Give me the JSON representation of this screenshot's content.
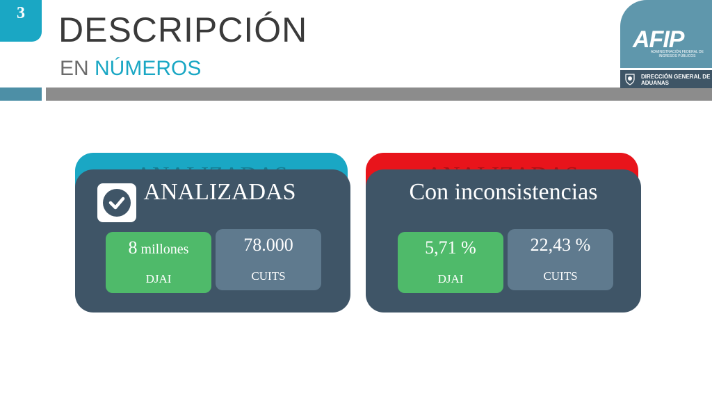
{
  "slide_number": "3",
  "title": "DESCRIPCIÓN",
  "subtitle_prefix": "EN ",
  "subtitle_accent": "NÚMEROS",
  "logo": {
    "brand": "AFIP",
    "brand_sub": "ADMINISTRACIÓN FEDERAL DE INGRESOS PÚBLICOS",
    "dept_line1": "DIRECCIÓN GENERAL DE",
    "dept_line2": "ADUANAS"
  },
  "cards": [
    {
      "ghost_title": "ANALIZADAS",
      "title": "ANALIZADAS",
      "back_color": "#1aa7c4",
      "icon": "check-circle-icon",
      "stats": [
        {
          "value": "8",
          "unit": " millones",
          "label": "DJAI"
        },
        {
          "value": "78.000",
          "unit": "",
          "label": "CUITS"
        }
      ]
    },
    {
      "ghost_title": "ANALIZADAS",
      "title": "Con inconsistencias",
      "back_color": "#e8141b",
      "stats": [
        {
          "value": "5,71 %",
          "unit": "",
          "label": "DJAI"
        },
        {
          "value": "22,43 %",
          "unit": "",
          "label": "CUITS"
        }
      ]
    }
  ],
  "colors": {
    "accent": "#1aa7c4",
    "card": "#3f5567",
    "green": "#4fba6a",
    "slate": "#5f7a8e",
    "red": "#e8141b"
  }
}
